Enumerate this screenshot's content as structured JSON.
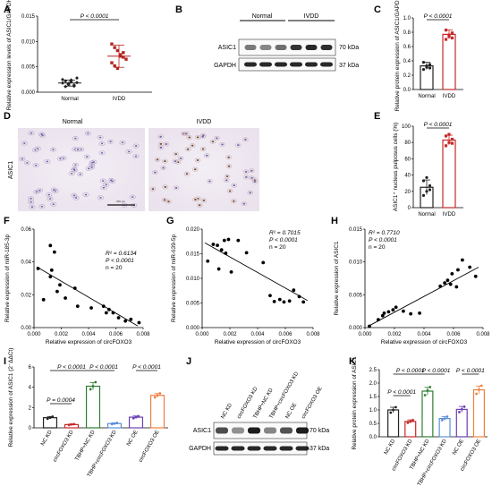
{
  "panels": {
    "A": {
      "letter": "A",
      "ylabel": "Relative expression levels of ASIC1/GAPDH",
      "yticks": [
        "0.000",
        "0.005",
        "0.010",
        "0.015"
      ],
      "ylim": [
        0,
        0.015
      ],
      "groups": [
        "Normal",
        "IVDD"
      ],
      "p": "P < 0.0001",
      "normal": [
        0.0018,
        0.0022,
        0.0015,
        0.0024,
        0.0012,
        0.0019,
        0.0025,
        0.0011,
        0.0017,
        0.0021,
        0.0014,
        0.0028
      ],
      "ivdd": [
        0.0095,
        0.0088,
        0.0082,
        0.0071,
        0.0069,
        0.0065,
        0.0058,
        0.0052,
        0.0047,
        0.0074,
        0.0078
      ],
      "means": [
        0.0018,
        0.0071
      ],
      "sd": [
        0.0006,
        0.0022
      ],
      "colors": {
        "normal": "#222222",
        "ivdd": "#b3241f"
      }
    },
    "B": {
      "letter": "B",
      "groups": [
        "Normal",
        "IVDD"
      ],
      "bands": [
        {
          "name": "ASIC1",
          "kda": "70 kDa"
        },
        {
          "name": "GAPDH",
          "kda": "37 kDa"
        }
      ]
    },
    "C": {
      "letter": "C",
      "ylabel": "Relative protein expression of ASIC1/GAPDH",
      "yticks": [
        "0.0",
        "0.2",
        "0.4",
        "0.6",
        "0.8",
        "1.0"
      ],
      "ylim": [
        0,
        1.0
      ],
      "categories": [
        "Normal",
        "IVDD"
      ],
      "values": [
        0.33,
        0.77
      ],
      "sd": [
        0.05,
        0.06
      ],
      "points": [
        [
          0.28,
          0.31,
          0.35,
          0.38,
          0.33,
          0.3
        ],
        [
          0.7,
          0.74,
          0.79,
          0.83,
          0.76,
          0.72
        ]
      ],
      "p": "P < 0.0001",
      "colors": {
        "normal": "#222222",
        "ivdd": "#c62828"
      }
    },
    "D": {
      "letter": "D",
      "titles": [
        "Normal",
        "IVDD"
      ],
      "ylabel": "ASIC1",
      "scale": "200 μm"
    },
    "E": {
      "letter": "E",
      "ylabel": "ASIC1⁺ nucleus pulposus cells (%)",
      "yticks": [
        "0",
        "20",
        "40",
        "60",
        "80",
        "100"
      ],
      "ylim": [
        0,
        100
      ],
      "categories": [
        "Normal",
        "IVDD"
      ],
      "values": [
        25,
        83
      ],
      "sd": [
        9,
        6
      ],
      "points": [
        [
          15,
          20,
          27,
          33,
          37,
          22
        ],
        [
          76,
          80,
          84,
          88,
          90,
          79
        ]
      ],
      "p": "P < 0.0001",
      "colors": {
        "normal": "#222222",
        "ivdd": "#c62828"
      }
    },
    "F": {
      "letter": "F",
      "xlabel": "Relative expression of circFOXO3",
      "ylabel": "Relative expression of miR-185-3p",
      "xticks": [
        "0.000",
        "0.002",
        "0.004",
        "0.006",
        "0.008"
      ],
      "yticks": [
        "0.00",
        "0.02",
        "0.04",
        "0.06"
      ],
      "xlim": [
        0,
        0.008
      ],
      "ylim": [
        0,
        0.06
      ],
      "r2": "R² = 0.6134",
      "p": "P < 0.0001",
      "n": "n = 20",
      "points": [
        [
          0.0003,
          0.036
        ],
        [
          0.0007,
          0.017
        ],
        [
          0.0012,
          0.05
        ],
        [
          0.0012,
          0.031
        ],
        [
          0.0013,
          0.035
        ],
        [
          0.0015,
          0.046
        ],
        [
          0.0017,
          0.022
        ],
        [
          0.0019,
          0.026
        ],
        [
          0.0023,
          0.018
        ],
        [
          0.003,
          0.024
        ],
        [
          0.0032,
          0.013
        ],
        [
          0.0042,
          0.012
        ],
        [
          0.0051,
          0.013
        ],
        [
          0.0053,
          0.009
        ],
        [
          0.0055,
          0.011
        ],
        [
          0.0058,
          0.009
        ],
        [
          0.0062,
          0.006
        ],
        [
          0.0067,
          0.004
        ],
        [
          0.0071,
          0.005
        ],
        [
          0.0077,
          0.003
        ]
      ],
      "fit": [
        [
          0.0002,
          0.037
        ],
        [
          0.0076,
          0.001
        ]
      ]
    },
    "G": {
      "letter": "G",
      "xlabel": "Relative expression of circFOXO3",
      "ylabel": "Relative expression of miR-639-5p",
      "xticks": [
        "0.000",
        "0.002",
        "0.004",
        "0.006",
        "0.008"
      ],
      "yticks": [
        "0.000",
        "0.005",
        "0.010",
        "0.015",
        "0.020"
      ],
      "xlim": [
        0,
        0.008
      ],
      "ylim": [
        0,
        0.02
      ],
      "r2": "R² = 0.7015",
      "p": "P < 0.0001",
      "n": "n = 20",
      "points": [
        [
          0.0004,
          0.0135
        ],
        [
          0.0008,
          0.0169
        ],
        [
          0.0011,
          0.0167
        ],
        [
          0.0012,
          0.0119
        ],
        [
          0.0014,
          0.0158
        ],
        [
          0.0016,
          0.0177
        ],
        [
          0.0017,
          0.0151
        ],
        [
          0.0019,
          0.0179
        ],
        [
          0.0021,
          0.0113
        ],
        [
          0.0026,
          0.0177
        ],
        [
          0.0032,
          0.0152
        ],
        [
          0.0044,
          0.0132
        ],
        [
          0.0049,
          0.0065
        ],
        [
          0.0052,
          0.0053
        ],
        [
          0.0056,
          0.0057
        ],
        [
          0.0059,
          0.0052
        ],
        [
          0.0063,
          0.0054
        ],
        [
          0.0066,
          0.0076
        ],
        [
          0.007,
          0.0063
        ],
        [
          0.0073,
          0.0052
        ]
      ],
      "fit": [
        [
          0.0002,
          0.0172
        ],
        [
          0.0076,
          0.0055
        ]
      ]
    },
    "H": {
      "letter": "H",
      "xlabel": "Relative expression of circFOXO3",
      "ylabel": "Relative expression of ASIC1",
      "xticks": [
        "0.000",
        "0.002",
        "0.004",
        "0.006",
        "0.008"
      ],
      "yticks": [
        "0.000",
        "0.005",
        "0.010",
        "0.015"
      ],
      "xlim": [
        0,
        0.008
      ],
      "ylim": [
        0,
        0.015
      ],
      "r2": "R² = 0.7710",
      "p": "P < 0.0001",
      "n": "n = 20",
      "points": [
        [
          0.0003,
          0.0002
        ],
        [
          0.0009,
          0.0012
        ],
        [
          0.0012,
          0.0018
        ],
        [
          0.0013,
          0.0022
        ],
        [
          0.0016,
          0.0024
        ],
        [
          0.0019,
          0.0027
        ],
        [
          0.0021,
          0.0031
        ],
        [
          0.0026,
          0.0025
        ],
        [
          0.0031,
          0.0021
        ],
        [
          0.0037,
          0.0022
        ],
        [
          0.0051,
          0.0063
        ],
        [
          0.0054,
          0.0068
        ],
        [
          0.0056,
          0.0072
        ],
        [
          0.0058,
          0.0066
        ],
        [
          0.0059,
          0.0082
        ],
        [
          0.0062,
          0.0062
        ],
        [
          0.0063,
          0.0088
        ],
        [
          0.0066,
          0.0103
        ],
        [
          0.0071,
          0.0092
        ],
        [
          0.0075,
          0.0078
        ]
      ],
      "fit": [
        [
          0.0003,
          0.0003
        ],
        [
          0.0077,
          0.0092
        ]
      ]
    },
    "I": {
      "letter": "I",
      "ylabel": "Relative expression of ASIC1 (2⁻ΔΔCt)",
      "yticks": [
        "0",
        "2",
        "4",
        "6"
      ],
      "ylim": [
        0,
        6
      ],
      "categories": [
        "NC KD",
        "circFOXO3 KD",
        "TBHP+NC KD",
        "TBHP+circFOXO3 KD",
        "NC OE",
        "circFOXO3 OE"
      ],
      "values": [
        1.0,
        0.32,
        4.1,
        0.42,
        1.05,
        3.2
      ],
      "sd": [
        0.12,
        0.06,
        0.35,
        0.08,
        0.12,
        0.18
      ],
      "points": [
        [
          0.9,
          1.0,
          1.1
        ],
        [
          0.28,
          0.33,
          0.36
        ],
        [
          3.8,
          4.1,
          4.5
        ],
        [
          0.36,
          0.42,
          0.48
        ],
        [
          0.95,
          1.05,
          1.15
        ],
        [
          3.0,
          3.2,
          3.4
        ]
      ],
      "colors": [
        "#222222",
        "#c62828",
        "#2e7d32",
        "#5b8fd6",
        "#6a3fb5",
        "#f08040"
      ],
      "stats": [
        {
          "text": "P = 0.0004",
          "from": 0,
          "to": 1
        },
        {
          "text": "P < 0.0001",
          "from": 0,
          "to": 2
        },
        {
          "text": "P < 0.0001",
          "from": 2,
          "to": 3
        },
        {
          "text": "P < 0.0001",
          "from": 4,
          "to": 5
        }
      ]
    },
    "J": {
      "letter": "J",
      "lanes": [
        "NC KD",
        "circFOXO3 KD",
        "TBHP+NC KD",
        "TBHP+circFOXO3 KD",
        "NC OE",
        "circFOXO3 OE"
      ],
      "bands": [
        {
          "name": "ASIC1",
          "kda": "70 kDa"
        },
        {
          "name": "GAPDH",
          "kda": "37 kDa"
        }
      ]
    },
    "K": {
      "letter": "K",
      "ylabel": "Relative protein expression of ASIC1",
      "yticks": [
        "0.0",
        "0.5",
        "1.0",
        "1.5",
        "2.0",
        "2.5"
      ],
      "ylim": [
        0,
        2.5
      ],
      "categories": [
        "NC KD",
        "circFOXO3 KD",
        "TBHP+NC KD",
        "TBHP+circFOXO3 KD",
        "NC OE",
        "circFOXO3 OE"
      ],
      "values": [
        1.0,
        0.57,
        1.7,
        0.68,
        1.02,
        1.75
      ],
      "sd": [
        0.1,
        0.06,
        0.14,
        0.07,
        0.11,
        0.14
      ],
      "points": [
        [
          0.9,
          1.0,
          1.1
        ],
        [
          0.52,
          0.57,
          0.62
        ],
        [
          1.55,
          1.72,
          1.85
        ],
        [
          0.62,
          0.68,
          0.75
        ],
        [
          0.92,
          1.02,
          1.12
        ],
        [
          1.6,
          1.75,
          1.9
        ]
      ],
      "colors": [
        "#222222",
        "#c62828",
        "#2e7d32",
        "#5b8fd6",
        "#6a3fb5",
        "#f08040"
      ],
      "stats": [
        {
          "text": "P < 0.0001",
          "from": 0,
          "to": 1
        },
        {
          "text": "P < 0.0001",
          "from": 0,
          "to": 2
        },
        {
          "text": "P < 0.0001",
          "from": 2,
          "to": 3
        },
        {
          "text": "P < 0.0001",
          "from": 4,
          "to": 5
        }
      ]
    }
  },
  "chart_data": [
    {
      "panel": "A",
      "type": "scatter",
      "categories": [
        "Normal",
        "IVDD"
      ],
      "values": [
        0.0018,
        0.0071
      ],
      "ylabel": "Relative expression levels of ASIC1/GAPDH",
      "ylim": [
        0,
        0.015
      ]
    },
    {
      "panel": "C",
      "type": "bar",
      "categories": [
        "Normal",
        "IVDD"
      ],
      "values": [
        0.33,
        0.77
      ],
      "ylabel": "Relative protein expression of ASIC1/GAPDH",
      "ylim": [
        0,
        1.0
      ]
    },
    {
      "panel": "E",
      "type": "bar",
      "categories": [
        "Normal",
        "IVDD"
      ],
      "values": [
        25,
        83
      ],
      "ylabel": "ASIC1⁺ nucleus pulposus cells (%)",
      "ylim": [
        0,
        100
      ]
    },
    {
      "panel": "F",
      "type": "scatter",
      "xlabel": "Relative expression of circFOXO3",
      "ylabel": "Relative expression of miR-185-3p",
      "xlim": [
        0,
        0.008
      ],
      "ylim": [
        0,
        0.06
      ]
    },
    {
      "panel": "G",
      "type": "scatter",
      "xlabel": "Relative expression of circFOXO3",
      "ylabel": "Relative expression of miR-639-5p",
      "xlim": [
        0,
        0.008
      ],
      "ylim": [
        0,
        0.02
      ]
    },
    {
      "panel": "H",
      "type": "scatter",
      "xlabel": "Relative expression of circFOXO3",
      "ylabel": "Relative expression of ASIC1",
      "xlim": [
        0,
        0.008
      ],
      "ylim": [
        0,
        0.015
      ]
    },
    {
      "panel": "I",
      "type": "bar",
      "categories": [
        "NC KD",
        "circFOXO3 KD",
        "TBHP+NC KD",
        "TBHP+circFOXO3 KD",
        "NC OE",
        "circFOXO3 OE"
      ],
      "values": [
        1.0,
        0.32,
        4.1,
        0.42,
        1.05,
        3.2
      ],
      "ylim": [
        0,
        6
      ]
    },
    {
      "panel": "K",
      "type": "bar",
      "categories": [
        "NC KD",
        "circFOXO3 KD",
        "TBHP+NC KD",
        "TBHP+circFOXO3 KD",
        "NC OE",
        "circFOXO3 OE"
      ],
      "values": [
        1.0,
        0.57,
        1.7,
        0.68,
        1.02,
        1.75
      ],
      "ylabel": "Relative protein expression of ASIC1",
      "ylim": [
        0,
        2.5
      ]
    }
  ]
}
